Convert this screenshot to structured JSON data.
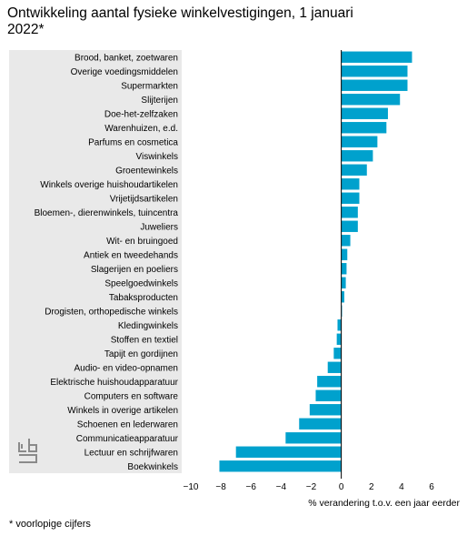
{
  "title": "Ontwikkeling aantal fysieke winkelvestigingen, 1 januari 2022*",
  "footnote": "* voorlopige cijfers",
  "logo": "cbs-logo",
  "colors": {
    "bar": "#00a1cd",
    "panel": "#e9e9e9",
    "grid": "#ffffff",
    "axis": "#000000"
  },
  "chart_data": {
    "type": "bar",
    "orientation": "horizontal",
    "title": "Ontwikkeling aantal fysieke winkelvestigingen, 1 januari 2022*",
    "xlabel": "% verandering t.o.v. een jaar eerder",
    "xlim": [
      -10,
      6
    ],
    "xticks": [
      -10,
      -8,
      -6,
      -4,
      -2,
      0,
      2,
      4,
      6
    ],
    "grid": true,
    "categories": [
      "Brood, banket, zoetwaren",
      "Overige voedingsmiddelen",
      "Supermarkten",
      "Slijterijen",
      "Doe-het-zelfzaken",
      "Warenhuizen, e.d.",
      "Parfums en cosmetica",
      "Viswinkels",
      "Groentewinkels",
      "Winkels overige huishoudartikelen",
      "Vrijetijdsartikelen",
      "Bloemen-, dierenwinkels, tuincentra",
      "Juweliers",
      "Wit- en bruingoed",
      "Antiek en tweedehands",
      "Slagerijen en poeliers",
      "Speelgoedwinkels",
      "Tabaksproducten",
      "Drogisten, orthopedische winkels",
      "Kledingwinkels",
      "Stoffen en textiel",
      "Tapijt en gordijnen",
      "Audio- en video-opnamen",
      "Elektrische huishoudapparatuur",
      "Computers en software",
      "Winkels in overige artikelen",
      "Schoenen en lederwaren",
      "Communicatieapparatuur",
      "Lectuur en schrijfwaren",
      "Boekwinkels"
    ],
    "values": [
      4.7,
      4.4,
      4.4,
      3.9,
      3.1,
      3.0,
      2.4,
      2.1,
      1.7,
      1.2,
      1.2,
      1.1,
      1.1,
      0.6,
      0.4,
      0.35,
      0.3,
      0.2,
      0.05,
      -0.25,
      -0.3,
      -0.5,
      -0.9,
      -1.6,
      -1.7,
      -2.1,
      -2.8,
      -3.7,
      -7.0,
      -8.1
    ]
  }
}
